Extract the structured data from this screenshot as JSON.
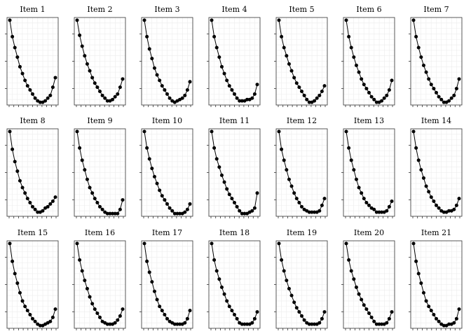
{
  "chart_data": [
    {
      "type": "line",
      "title": "Item 1",
      "values": [
        1.0,
        0.88,
        0.8,
        0.73,
        0.66,
        0.61,
        0.56,
        0.52,
        0.49,
        0.46,
        0.43,
        0.41,
        0.4,
        0.4,
        0.41,
        0.43,
        0.45,
        0.51,
        0.58
      ]
    },
    {
      "type": "line",
      "title": "Item 2",
      "values": [
        1.0,
        0.89,
        0.81,
        0.74,
        0.68,
        0.63,
        0.58,
        0.54,
        0.51,
        0.48,
        0.45,
        0.43,
        0.41,
        0.41,
        0.42,
        0.44,
        0.46,
        0.51,
        0.57
      ]
    },
    {
      "type": "line",
      "title": "Item 3",
      "values": [
        1.0,
        0.88,
        0.79,
        0.72,
        0.65,
        0.6,
        0.56,
        0.52,
        0.49,
        0.46,
        0.43,
        0.41,
        0.4,
        0.41,
        0.42,
        0.43,
        0.45,
        0.49,
        0.55
      ]
    },
    {
      "type": "line",
      "title": "Item 4",
      "values": [
        1.0,
        0.88,
        0.8,
        0.73,
        0.66,
        0.61,
        0.56,
        0.52,
        0.49,
        0.46,
        0.43,
        0.41,
        0.41,
        0.41,
        0.42,
        0.42,
        0.43,
        0.46,
        0.53
      ]
    },
    {
      "type": "line",
      "title": "Item 5",
      "values": [
        1.0,
        0.88,
        0.8,
        0.74,
        0.68,
        0.63,
        0.58,
        0.54,
        0.51,
        0.48,
        0.45,
        0.42,
        0.4,
        0.4,
        0.41,
        0.43,
        0.45,
        0.48,
        0.52
      ]
    },
    {
      "type": "line",
      "title": "Item 6",
      "values": [
        1.0,
        0.88,
        0.8,
        0.73,
        0.67,
        0.62,
        0.57,
        0.53,
        0.5,
        0.47,
        0.44,
        0.42,
        0.4,
        0.4,
        0.41,
        0.43,
        0.45,
        0.49,
        0.56
      ]
    },
    {
      "type": "line",
      "title": "Item 7",
      "values": [
        1.0,
        0.88,
        0.8,
        0.73,
        0.67,
        0.62,
        0.57,
        0.53,
        0.5,
        0.47,
        0.44,
        0.42,
        0.4,
        0.4,
        0.41,
        0.43,
        0.45,
        0.5,
        0.57
      ]
    },
    {
      "type": "line",
      "title": "Item 8",
      "values": [
        1.0,
        0.87,
        0.78,
        0.71,
        0.64,
        0.59,
        0.55,
        0.51,
        0.48,
        0.45,
        0.43,
        0.41,
        0.41,
        0.42,
        0.44,
        0.45,
        0.47,
        0.49,
        0.52
      ]
    },
    {
      "type": "line",
      "title": "Item 9",
      "values": [
        1.0,
        0.88,
        0.79,
        0.72,
        0.65,
        0.59,
        0.55,
        0.51,
        0.48,
        0.45,
        0.43,
        0.41,
        0.4,
        0.4,
        0.4,
        0.4,
        0.4,
        0.43,
        0.5
      ]
    },
    {
      "type": "line",
      "title": "Item 10",
      "values": [
        1.0,
        0.88,
        0.8,
        0.73,
        0.67,
        0.62,
        0.57,
        0.53,
        0.5,
        0.47,
        0.44,
        0.42,
        0.4,
        0.4,
        0.4,
        0.4,
        0.41,
        0.43,
        0.47
      ]
    },
    {
      "type": "line",
      "title": "Item 11",
      "values": [
        1.0,
        0.88,
        0.8,
        0.74,
        0.68,
        0.63,
        0.58,
        0.54,
        0.51,
        0.48,
        0.45,
        0.42,
        0.4,
        0.4,
        0.4,
        0.41,
        0.42,
        0.44,
        0.55
      ]
    },
    {
      "type": "line",
      "title": "Item 12",
      "values": [
        1.0,
        0.87,
        0.79,
        0.72,
        0.65,
        0.6,
        0.55,
        0.51,
        0.48,
        0.45,
        0.43,
        0.42,
        0.41,
        0.41,
        0.41,
        0.41,
        0.42,
        0.46,
        0.51
      ]
    },
    {
      "type": "line",
      "title": "Item 13",
      "values": [
        1.0,
        0.88,
        0.79,
        0.72,
        0.65,
        0.59,
        0.55,
        0.51,
        0.48,
        0.46,
        0.44,
        0.43,
        0.41,
        0.41,
        0.41,
        0.41,
        0.42,
        0.45,
        0.49
      ]
    },
    {
      "type": "line",
      "title": "Item 14",
      "values": [
        1.0,
        0.88,
        0.79,
        0.72,
        0.66,
        0.6,
        0.56,
        0.52,
        0.49,
        0.46,
        0.44,
        0.42,
        0.41,
        0.41,
        0.42,
        0.42,
        0.43,
        0.46,
        0.51
      ]
    },
    {
      "type": "line",
      "title": "Item 15",
      "values": [
        1.0,
        0.87,
        0.78,
        0.71,
        0.64,
        0.58,
        0.54,
        0.51,
        0.48,
        0.45,
        0.43,
        0.41,
        0.4,
        0.4,
        0.41,
        0.42,
        0.43,
        0.46,
        0.52
      ]
    },
    {
      "type": "line",
      "title": "Item 16",
      "values": [
        1.0,
        0.88,
        0.8,
        0.73,
        0.67,
        0.61,
        0.56,
        0.52,
        0.49,
        0.46,
        0.43,
        0.42,
        0.41,
        0.41,
        0.41,
        0.42,
        0.44,
        0.47,
        0.52
      ]
    },
    {
      "type": "line",
      "title": "Item 17",
      "values": [
        1.0,
        0.87,
        0.79,
        0.72,
        0.65,
        0.59,
        0.54,
        0.51,
        0.48,
        0.45,
        0.43,
        0.42,
        0.41,
        0.41,
        0.41,
        0.41,
        0.42,
        0.45,
        0.51
      ]
    },
    {
      "type": "line",
      "title": "Item 18",
      "values": [
        1.0,
        0.88,
        0.8,
        0.74,
        0.68,
        0.63,
        0.58,
        0.54,
        0.51,
        0.48,
        0.45,
        0.42,
        0.41,
        0.41,
        0.41,
        0.41,
        0.42,
        0.45,
        0.5
      ]
    },
    {
      "type": "line",
      "title": "Item 19",
      "values": [
        1.0,
        0.88,
        0.8,
        0.73,
        0.67,
        0.62,
        0.57,
        0.53,
        0.5,
        0.47,
        0.44,
        0.42,
        0.41,
        0.41,
        0.41,
        0.41,
        0.42,
        0.45,
        0.5
      ]
    },
    {
      "type": "line",
      "title": "Item 20",
      "values": [
        1.0,
        0.88,
        0.8,
        0.74,
        0.68,
        0.63,
        0.59,
        0.55,
        0.52,
        0.49,
        0.46,
        0.43,
        0.41,
        0.41,
        0.41,
        0.41,
        0.42,
        0.45,
        0.5
      ]
    },
    {
      "type": "line",
      "title": "Item 21",
      "values": [
        1.0,
        0.87,
        0.78,
        0.71,
        0.64,
        0.58,
        0.54,
        0.51,
        0.48,
        0.45,
        0.43,
        0.41,
        0.4,
        0.4,
        0.41,
        0.41,
        0.42,
        0.45,
        0.52
      ]
    }
  ]
}
